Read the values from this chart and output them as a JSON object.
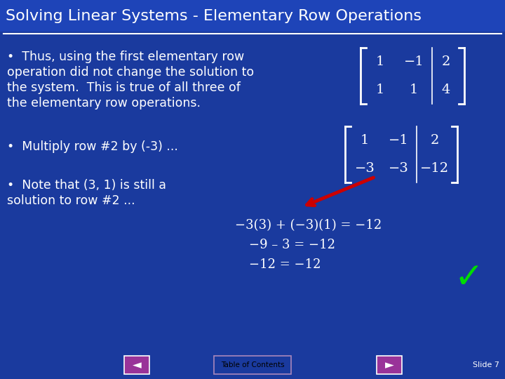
{
  "bg_color": "#1a3a9e",
  "title_text": "Solving Linear Systems - Elementary Row Operations",
  "title_color": "#ffffff",
  "title_bg_color": "#1a3a9e",
  "title_fontsize": 16,
  "bullet1_line1": "•  Thus, using the first elementary row",
  "bullet1_line2": "operation did not change the solution to",
  "bullet1_line3": "the system.  This is true of all three of",
  "bullet1_line4": "the elementary row operations.",
  "bullet2": "•  Multiply row #2 by (-3) ...",
  "bullet3_line1": "•  Note that (3, 1) is still a",
  "bullet3_line2": "solution to row #2 ...",
  "matrix1_rows": [
    [
      "1",
      "−1",
      "2"
    ],
    [
      "1",
      "1",
      "4"
    ]
  ],
  "matrix2_rows": [
    [
      "1",
      "−1",
      "2"
    ],
    [
      "−3",
      "−3",
      "−12"
    ]
  ],
  "eq1": "−3(3) + (−3)(1) = −12",
  "eq2": "−9 – 3 = −12",
  "eq3": "−12 = −12",
  "text_color": "#ffffff",
  "eq_color": "#ffffff",
  "check_color": "#00dd00",
  "arrow_color": "#cc0000",
  "footer_text": "Table of Contents",
  "slide_num": "Slide 7",
  "footer_color": "#ffffff",
  "footer_bg": "#1a3a9e",
  "btn_color": "#993399",
  "toc_border": "#aa88bb",
  "toc_text_color": "#000000"
}
